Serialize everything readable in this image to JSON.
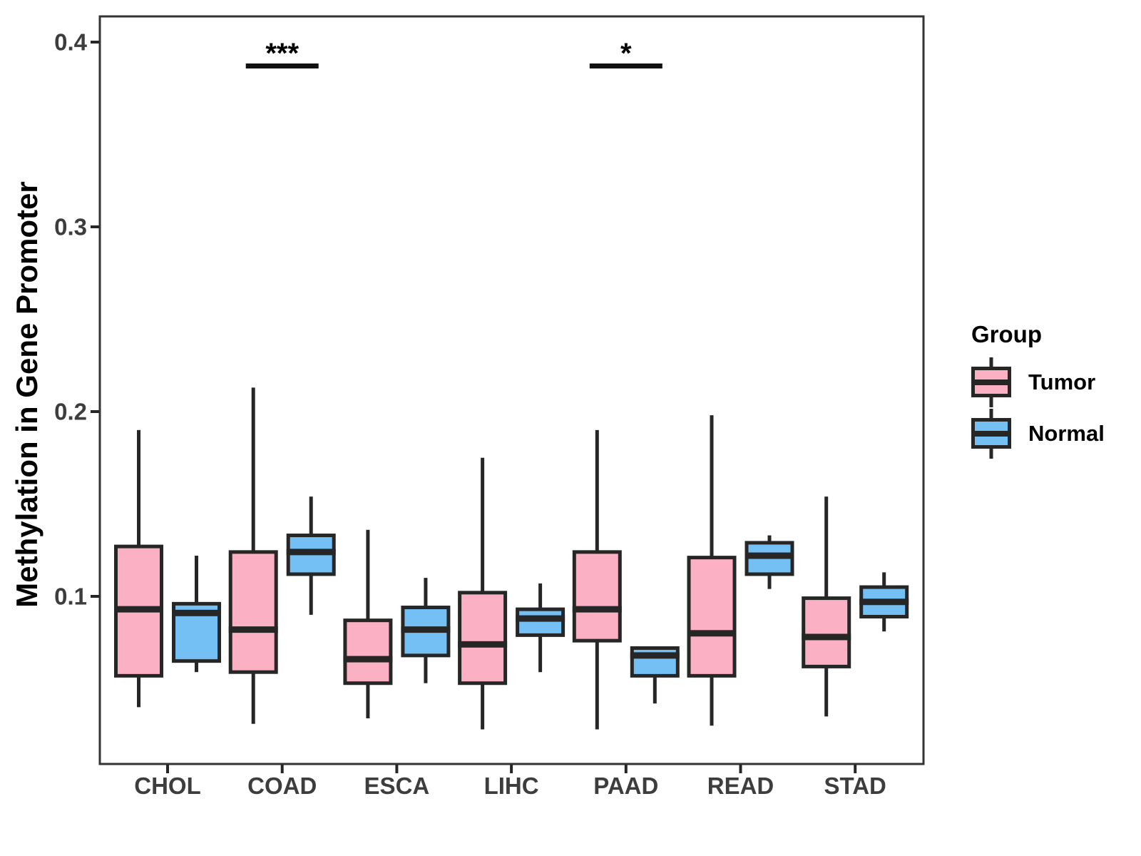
{
  "figure": {
    "y_axis_title": "Methylation in Gene Promoter",
    "legend": {
      "title": "Group",
      "items": [
        {
          "label": "Tumor",
          "color": "#FBB1C3"
        },
        {
          "label": "Normal",
          "color": "#74C0F5"
        }
      ]
    }
  },
  "chart_data": {
    "type": "boxplot",
    "title": "",
    "xlabel": "",
    "ylabel": "Methylation in Gene Promoter",
    "categories": [
      "CHOL",
      "COAD",
      "ESCA",
      "LIHC",
      "PAAD",
      "READ",
      "STAD"
    ],
    "yticks": [
      0.1,
      0.2,
      0.3,
      0.4
    ],
    "ytick_labels": [
      "0.1",
      "0.2",
      "0.3",
      "0.4"
    ],
    "ylim": [
      0.009,
      0.414
    ],
    "grid": false,
    "legend_position": "right",
    "box_border_color": "#262626",
    "series": [
      {
        "name": "Tumor",
        "color": "#FBB1C3",
        "boxes": [
          {
            "category": "CHOL",
            "min": 0.04,
            "q1": 0.057,
            "median": 0.093,
            "q3": 0.127,
            "max": 0.19
          },
          {
            "category": "COAD",
            "min": 0.031,
            "q1": 0.059,
            "median": 0.082,
            "q3": 0.124,
            "max": 0.213
          },
          {
            "category": "ESCA",
            "min": 0.034,
            "q1": 0.053,
            "median": 0.066,
            "q3": 0.087,
            "max": 0.136
          },
          {
            "category": "LIHC",
            "min": 0.028,
            "q1": 0.053,
            "median": 0.074,
            "q3": 0.102,
            "max": 0.175
          },
          {
            "category": "PAAD",
            "min": 0.028,
            "q1": 0.076,
            "median": 0.093,
            "q3": 0.124,
            "max": 0.19
          },
          {
            "category": "READ",
            "min": 0.03,
            "q1": 0.057,
            "median": 0.08,
            "q3": 0.121,
            "max": 0.198
          },
          {
            "category": "STAD",
            "min": 0.035,
            "q1": 0.062,
            "median": 0.078,
            "q3": 0.099,
            "max": 0.154
          }
        ]
      },
      {
        "name": "Normal",
        "color": "#74C0F5",
        "boxes": [
          {
            "category": "CHOL",
            "min": 0.059,
            "q1": 0.065,
            "median": 0.091,
            "q3": 0.096,
            "max": 0.122
          },
          {
            "category": "COAD",
            "min": 0.09,
            "q1": 0.112,
            "median": 0.124,
            "q3": 0.133,
            "max": 0.154
          },
          {
            "category": "ESCA",
            "min": 0.053,
            "q1": 0.068,
            "median": 0.082,
            "q3": 0.094,
            "max": 0.11
          },
          {
            "category": "LIHC",
            "min": 0.059,
            "q1": 0.079,
            "median": 0.088,
            "q3": 0.093,
            "max": 0.107
          },
          {
            "category": "PAAD",
            "min": 0.042,
            "q1": 0.057,
            "median": 0.068,
            "q3": 0.072,
            "max": 0.072
          },
          {
            "category": "READ",
            "min": 0.104,
            "q1": 0.112,
            "median": 0.122,
            "q3": 0.129,
            "max": 0.133
          },
          {
            "category": "STAD",
            "min": 0.081,
            "q1": 0.089,
            "median": 0.097,
            "q3": 0.105,
            "max": 0.113
          }
        ]
      }
    ],
    "annotations": [
      {
        "category": "COAD",
        "label": "***"
      },
      {
        "category": "PAAD",
        "label": "*"
      }
    ]
  }
}
